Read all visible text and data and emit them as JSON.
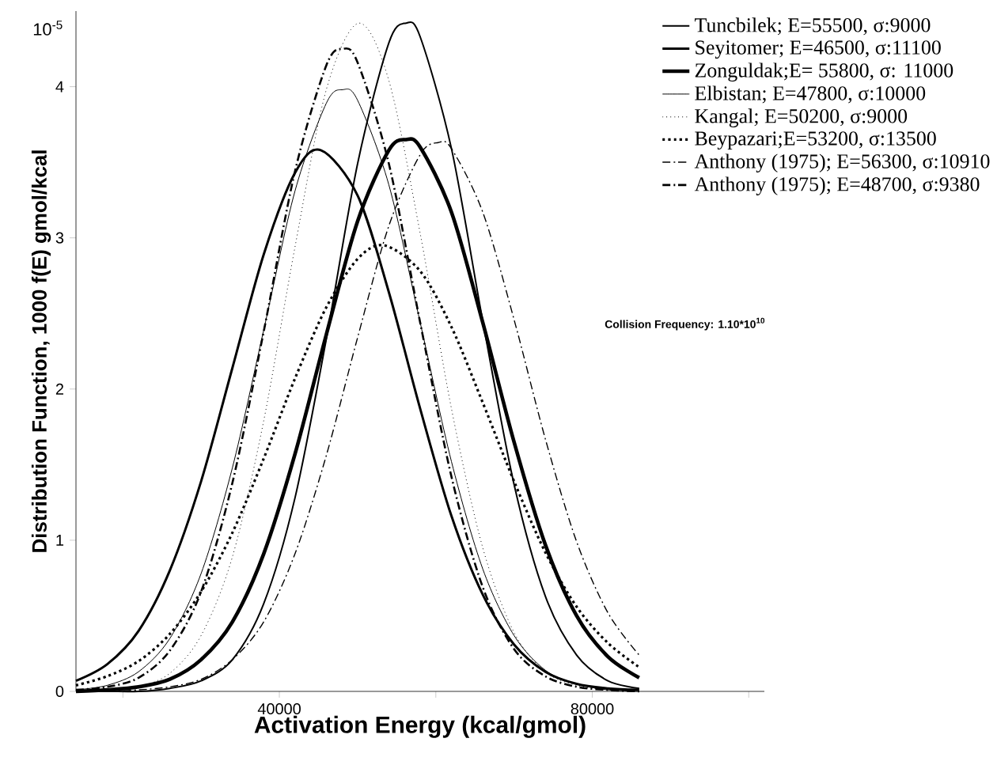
{
  "chart_data": {
    "type": "line",
    "xlabel": "Activation Energy (kcal/gmol)",
    "ylabel": "Distribution Function, 1000 f(E) gmol/kcal",
    "xlim": [
      14000,
      102000
    ],
    "ylim": [
      0,
      4.5
    ],
    "xticks": [
      {
        "value": 20000,
        "label": null
      },
      40000,
      {
        "value": 60000,
        "label": null
      },
      80000,
      {
        "value": 100000,
        "label": null
      }
    ],
    "yticks": [
      0,
      1,
      2,
      3,
      4
    ],
    "legend": "top right",
    "annotations": [
      "10$^{-5}$",
      "Collision Frequency: 1.10*10$^{10}$"
    ],
    "series": [
      {
        "name": "Tuncbilek; E=55500, σ:9000",
        "color": "#000000",
        "line_style": "solid",
        "x": [
          14000,
          18000,
          22000,
          26000,
          30000,
          34000,
          38000,
          42000,
          46000,
          50000,
          54000,
          56200,
          58000,
          62000,
          66000,
          70000,
          74000,
          78000,
          82000,
          86000
        ],
        "values": [
          0,
          0,
          0,
          0.02,
          0.07,
          0.21,
          0.58,
          1.28,
          2.33,
          3.49,
          4.29,
          4.42,
          4.33,
          3.59,
          2.45,
          1.37,
          0.63,
          0.24,
          0.07,
          0.02
        ]
      },
      {
        "name": "Seyitomer; E=46500, σ:11100",
        "color": "#000000",
        "line_style": "solid",
        "x": [
          14000,
          18000,
          22000,
          26000,
          30000,
          34000,
          38000,
          42000,
          45300,
          50000,
          54000,
          58000,
          62000,
          66000,
          70000,
          74000,
          78000,
          82000,
          86000
        ],
        "values": [
          0.07,
          0.18,
          0.4,
          0.8,
          1.39,
          2.14,
          2.89,
          3.43,
          3.58,
          3.28,
          2.64,
          1.87,
          1.16,
          0.64,
          0.31,
          0.13,
          0.05,
          0.02,
          0.01
        ]
      },
      {
        "name": "Zonguldak;E= 55800, σ: 11000",
        "color": "#000000",
        "line_style": "solid",
        "x": [
          14000,
          18000,
          22000,
          26000,
          30000,
          34000,
          38000,
          42000,
          46000,
          50000,
          54000,
          56200,
          58000,
          62000,
          66000,
          70000,
          74000,
          78000,
          82000,
          86000
        ],
        "values": [
          0,
          0.01,
          0.03,
          0.08,
          0.21,
          0.46,
          0.91,
          1.57,
          2.36,
          3.11,
          3.58,
          3.65,
          3.6,
          3.17,
          2.44,
          1.65,
          0.97,
          0.5,
          0.23,
          0.09
        ]
      },
      {
        "name": "Elbistan;  E=47800, σ:10000",
        "color": "#000000",
        "line_style": "solid",
        "x": [
          14000,
          18000,
          22000,
          26000,
          30000,
          34000,
          38000,
          42000,
          46000,
          48100,
          50000,
          54000,
          58000,
          62000,
          66000,
          70000,
          74000,
          78000,
          82000,
          86000
        ],
        "values": [
          0.01,
          0.04,
          0.13,
          0.35,
          0.78,
          1.48,
          2.39,
          3.31,
          3.89,
          3.98,
          3.91,
          3.35,
          2.44,
          1.52,
          0.81,
          0.37,
          0.14,
          0.05,
          0.01,
          0
        ]
      },
      {
        "name": "Kangal;  E=50200, σ:9000",
        "color": "#000000",
        "line_style": "dotted",
        "x": [
          14000,
          18000,
          22000,
          26000,
          30000,
          34000,
          38000,
          42000,
          46000,
          50150,
          54000,
          58000,
          62000,
          66000,
          70000,
          74000,
          78000,
          82000,
          86000
        ],
        "values": [
          0,
          0.01,
          0.03,
          0.12,
          0.37,
          0.89,
          1.79,
          2.94,
          3.98,
          4.42,
          4.04,
          3.03,
          1.87,
          0.95,
          0.39,
          0.13,
          0.04,
          0.01,
          0
        ]
      },
      {
        "name": "Beypazari;E=53200, σ:13500",
        "color": "#000000",
        "line_style": "dotted",
        "x": [
          14000,
          18000,
          22000,
          26000,
          30000,
          34000,
          38000,
          42000,
          46000,
          50000,
          53400,
          58000,
          62000,
          66000,
          70000,
          74000,
          78000,
          82000,
          86000
        ],
        "values": [
          0.04,
          0.1,
          0.2,
          0.38,
          0.66,
          1.05,
          1.54,
          2.07,
          2.54,
          2.86,
          2.95,
          2.78,
          2.41,
          1.91,
          1.39,
          0.92,
          0.56,
          0.32,
          0.16
        ]
      },
      {
        "name": "Anthony (1975); E=56300, σ:10910",
        "color": "#000000",
        "line_style": "dashed",
        "x": [
          14000,
          18000,
          22000,
          26000,
          30000,
          34000,
          38000,
          42000,
          46000,
          50000,
          54000,
          58000,
          60300,
          62000,
          66000,
          70000,
          74000,
          78000,
          82000,
          86000
        ],
        "values": [
          0,
          0,
          0.01,
          0.03,
          0.08,
          0.21,
          0.46,
          0.91,
          1.56,
          2.34,
          3.08,
          3.55,
          3.63,
          3.59,
          3.17,
          2.46,
          1.67,
          0.99,
          0.52,
          0.24
        ]
      },
      {
        "name": "Anthony (1975); E=48700, σ:9380",
        "color": "#000000",
        "line_style": "dashed",
        "x": [
          14000,
          18000,
          22000,
          26000,
          30000,
          34000,
          38000,
          42000,
          46000,
          48100,
          50000,
          54000,
          58000,
          62000,
          66000,
          70000,
          74000,
          78000,
          82000,
          86000
        ],
        "values": [
          0.01,
          0.03,
          0.09,
          0.27,
          0.66,
          1.38,
          2.38,
          3.44,
          4.14,
          4.25,
          4.16,
          3.49,
          2.44,
          1.42,
          0.69,
          0.28,
          0.1,
          0.03,
          0.01,
          0
        ]
      }
    ]
  }
}
